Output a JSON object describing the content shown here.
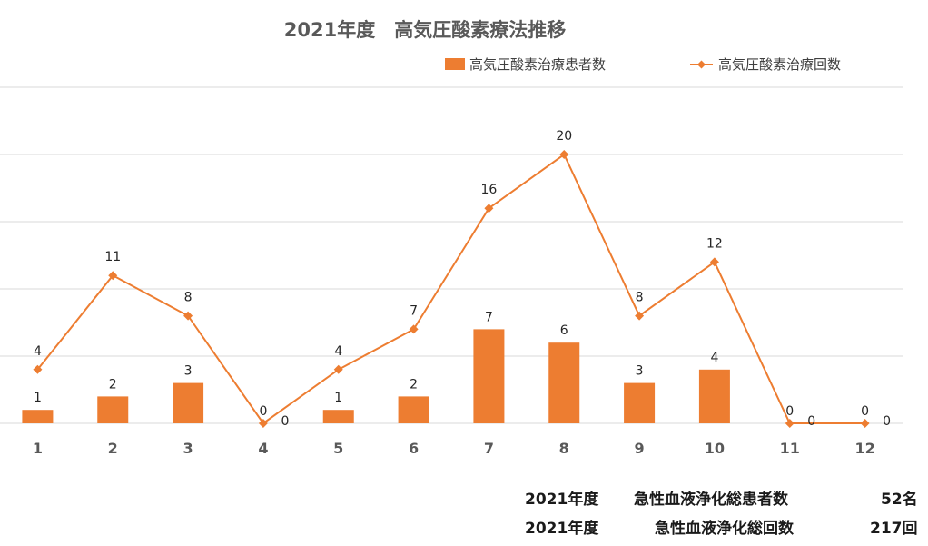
{
  "colors": {
    "accent": "#ED7D31",
    "grid": "#D9D9D9",
    "text": "#595959"
  },
  "chart_data": {
    "type": "bar+line",
    "title": "2021年度　高気圧酸素療法推移",
    "categories": [
      "1",
      "2",
      "3",
      "4",
      "5",
      "6",
      "7",
      "8",
      "9",
      "10",
      "11",
      "12"
    ],
    "series": [
      {
        "name": "高気圧酸素治療患者数",
        "type": "bar",
        "values": [
          1,
          2,
          3,
          0,
          1,
          2,
          7,
          6,
          3,
          4,
          0,
          0
        ]
      },
      {
        "name": "高気圧酸素治療回数",
        "type": "line",
        "values": [
          4,
          11,
          8,
          0,
          4,
          7,
          16,
          20,
          8,
          12,
          0,
          0
        ]
      }
    ],
    "ylim": [
      0,
      25
    ],
    "grid": true,
    "legend_position": "top-right"
  },
  "footer": {
    "row1": {
      "year": "2021年度",
      "label": "急性血液浄化総患者数",
      "value": "52名"
    },
    "row2": {
      "year": "2021年度",
      "label": "急性血液浄化総回数",
      "value": "217回"
    }
  }
}
